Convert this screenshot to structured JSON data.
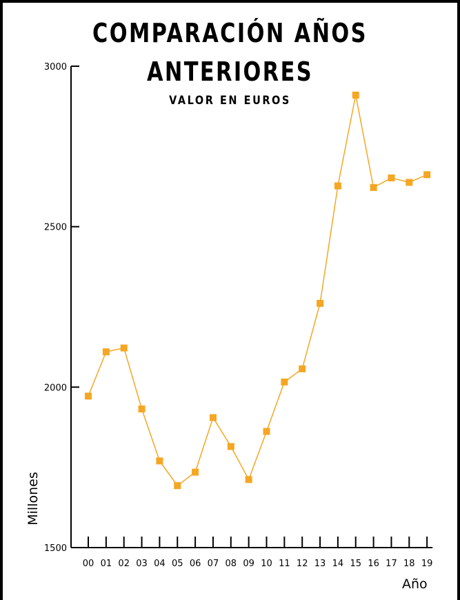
{
  "chart_data": {
    "type": "line",
    "title": "COMPARACIÓN  AÑOS",
    "title_line2": "ANTERIORES",
    "subtitle": "VALOR  EN  EUROS",
    "xlabel": "Año",
    "ylabel": "Millones",
    "categories": [
      "00",
      "01",
      "02",
      "03",
      "04",
      "05",
      "06",
      "07",
      "08",
      "09",
      "10",
      "11",
      "12",
      "13",
      "14",
      "15",
      "16",
      "17",
      "18",
      "19"
    ],
    "series": [
      {
        "values": [
          1972,
          2110,
          2122,
          1932,
          1770,
          1693,
          1735,
          1905,
          1815,
          1712,
          1862,
          2016,
          2057,
          2261,
          2627,
          2910,
          2622,
          2652,
          2638,
          2662
        ]
      }
    ],
    "yticks": [
      1500,
      2000,
      2500,
      3000
    ],
    "ylim": [
      1500,
      3000
    ],
    "line_color": "#f5a623",
    "marker": "square",
    "grid": false
  }
}
